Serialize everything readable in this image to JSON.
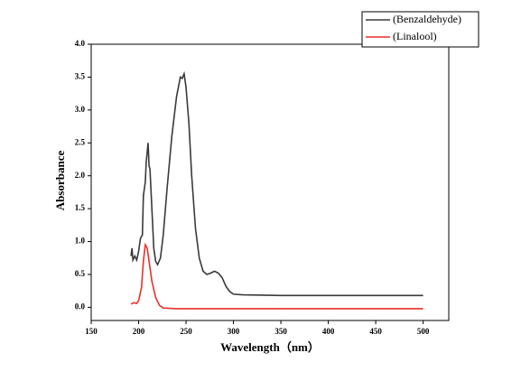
{
  "chart_data": {
    "type": "line",
    "xlabel": "Wavelength（nm）",
    "ylabel": "Absorbance",
    "xlim": [
      150,
      527
    ],
    "ylim": [
      -0.2,
      4.0
    ],
    "xticks": [
      150,
      200,
      250,
      300,
      350,
      400,
      450,
      500
    ],
    "yticks": [
      {
        "value": 0,
        "label": "0.0"
      },
      {
        "value": 0.5,
        "label": "0.5"
      },
      {
        "value": 1,
        "label": "1.0"
      },
      {
        "value": 1.5,
        "label": "1.5"
      },
      {
        "value": 2,
        "label": "2.0"
      },
      {
        "value": 2.5,
        "label": "2.5"
      },
      {
        "value": 3,
        "label": "3.0"
      },
      {
        "value": 3.5,
        "label": "3.5"
      },
      {
        "value": 4,
        "label": "4.0"
      }
    ],
    "legend": "top-right",
    "series": [
      {
        "name": "(Benzaldehyde)",
        "color": "#3a3a3a",
        "x": [
          192,
          193,
          194,
          196,
          198,
          200,
          202,
          204,
          205,
          207,
          208,
          210,
          211,
          212,
          214,
          216,
          218,
          220,
          223,
          226,
          230,
          235,
          240,
          244,
          246,
          248,
          250,
          253,
          256,
          260,
          264,
          268,
          272,
          276,
          280,
          284,
          288,
          292,
          296,
          300,
          310,
          350,
          400,
          450,
          500
        ],
        "values": [
          0.78,
          0.9,
          0.72,
          0.78,
          0.72,
          0.85,
          1.05,
          1.1,
          1.7,
          1.9,
          2.2,
          2.5,
          2.15,
          2.1,
          1.5,
          0.9,
          0.7,
          0.65,
          0.75,
          1.1,
          1.8,
          2.6,
          3.2,
          3.5,
          3.48,
          3.55,
          3.35,
          2.8,
          2.0,
          1.2,
          0.75,
          0.55,
          0.5,
          0.52,
          0.55,
          0.52,
          0.45,
          0.32,
          0.24,
          0.2,
          0.19,
          0.18,
          0.18,
          0.18,
          0.18
        ]
      },
      {
        "name": "(Linalool)",
        "color": "#e8302a",
        "x": [
          192,
          195,
          198,
          200,
          203,
          205,
          207,
          209,
          211,
          214,
          218,
          222,
          226,
          240,
          300,
          400,
          500
        ],
        "values": [
          0.05,
          0.07,
          0.06,
          0.1,
          0.3,
          0.7,
          0.95,
          0.9,
          0.7,
          0.4,
          0.15,
          0.03,
          -0.01,
          -0.02,
          -0.02,
          -0.02,
          -0.02
        ]
      }
    ]
  }
}
